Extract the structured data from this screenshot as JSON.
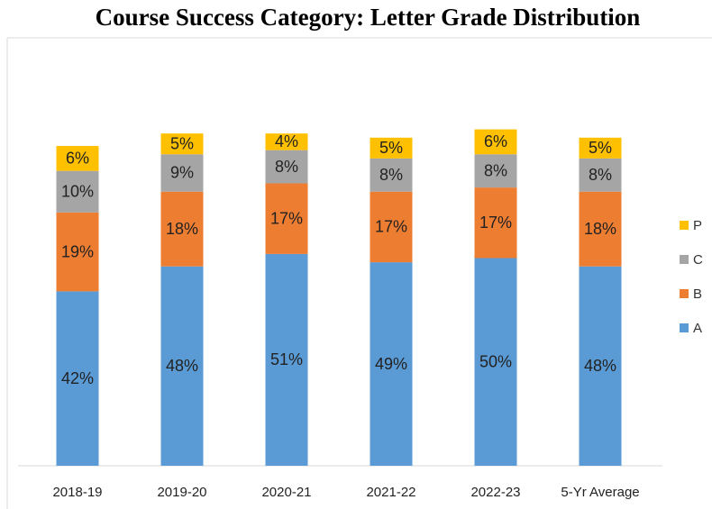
{
  "chart_data": {
    "type": "stacked-bar",
    "title": "Course Success Category: Letter Grade Distribution",
    "categories": [
      "2018-19",
      "2019-20",
      "2020-21",
      "2021-22",
      "2022-23",
      "5-Yr Average"
    ],
    "series": [
      {
        "name": "A",
        "color": "#5b9bd5",
        "values": [
          42,
          48,
          51,
          49,
          50,
          48
        ],
        "value_labels": [
          "42%",
          "48%",
          "51%",
          "49%",
          "50%",
          "48%"
        ]
      },
      {
        "name": "B",
        "color": "#ed7d31",
        "values": [
          19,
          18,
          17,
          17,
          17,
          18
        ],
        "value_labels": [
          "19%",
          "18%",
          "17%",
          "17%",
          "17%",
          "18%"
        ]
      },
      {
        "name": "C",
        "color": "#a5a5a5",
        "values": [
          10,
          9,
          8,
          8,
          8,
          8
        ],
        "value_labels": [
          "10%",
          "9%",
          "8%",
          "8%",
          "8%",
          "8%"
        ]
      },
      {
        "name": "P",
        "color": "#ffc000",
        "values": [
          6,
          5,
          4,
          5,
          6,
          5
        ],
        "value_labels": [
          "6%",
          "5%",
          "4%",
          "5%",
          "6%",
          "5%"
        ]
      }
    ],
    "legend": "right"
  }
}
